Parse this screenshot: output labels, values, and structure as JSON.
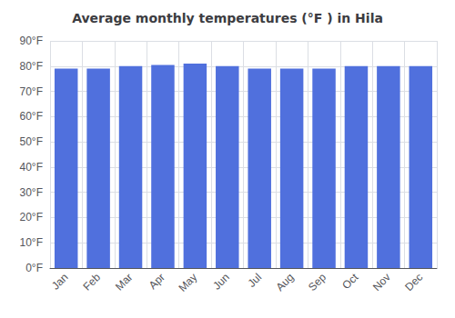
{
  "chart_data": {
    "type": "bar",
    "title": "Average monthly temperatures (°F ) in Hila",
    "categories": [
      "Jan",
      "Feb",
      "Mar",
      "Apr",
      "May",
      "Jun",
      "Jul",
      "Aug",
      "Sep",
      "Oct",
      "Nov",
      "Dec"
    ],
    "values": [
      79,
      79,
      80,
      80.5,
      81,
      80,
      79,
      79,
      79,
      80,
      80,
      80
    ],
    "ylim": [
      0,
      90
    ],
    "yticks": [
      {
        "value": 0,
        "label": "0°F"
      },
      {
        "value": 10,
        "label": "10°F"
      },
      {
        "value": 20,
        "label": "20°F"
      },
      {
        "value": 30,
        "label": "30°F"
      },
      {
        "value": 40,
        "label": "40°F"
      },
      {
        "value": 50,
        "label": "50°F"
      },
      {
        "value": 60,
        "label": "60°F"
      },
      {
        "value": 70,
        "label": "70°F"
      },
      {
        "value": 80,
        "label": "80°F"
      },
      {
        "value": 90,
        "label": "90°F"
      }
    ],
    "grid": true
  }
}
